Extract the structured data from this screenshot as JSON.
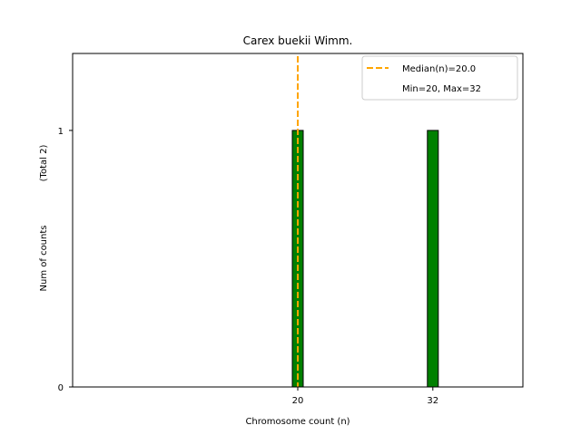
{
  "chart_data": {
    "type": "bar",
    "title": "Carex buekii Wimm.",
    "xlabel": "Chromosome count (n)",
    "ylabel": "Num of counts",
    "ylabel_total": "(Total 2)",
    "categories": [
      20,
      32
    ],
    "values": [
      1,
      1
    ],
    "xlim": [
      0,
      40
    ],
    "ylim": [
      0,
      1.3
    ],
    "xticks": [
      "20",
      "32"
    ],
    "yticks": [
      0,
      1
    ],
    "bar_color": "#008000",
    "bar_edge_color": "#000000",
    "median": 20.0,
    "median_color": "#FFA500",
    "legend": {
      "placement": "top-right",
      "entries": [
        "Median(n)=20.0",
        "Min=20, Max=32"
      ]
    }
  }
}
